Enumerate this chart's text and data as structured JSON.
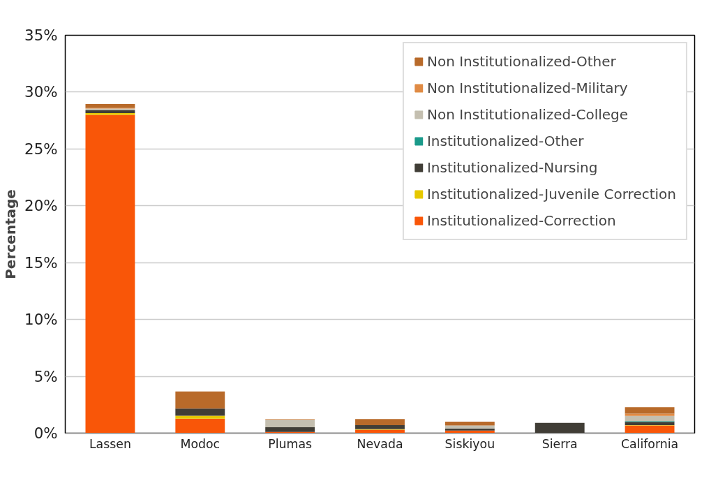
{
  "chart_data": {
    "type": "bar",
    "stacked": true,
    "ylabel": "Percentage",
    "categories": [
      "Lassen",
      "Modoc",
      "Plumas",
      "Nevada",
      "Siskiyou",
      "Sierra",
      "California"
    ],
    "series": [
      {
        "name": "Institutionalized-Correction",
        "color": "#f95608",
        "values": [
          28.0,
          1.27,
          0.1,
          0.3,
          0.23,
          0,
          0.67
        ]
      },
      {
        "name": "Institutionalized-Juvenile Correction",
        "color": "#e6c800",
        "values": [
          0.15,
          0.27,
          0,
          0.06,
          0,
          0,
          0.03
        ]
      },
      {
        "name": "Institutionalized-Nursing",
        "color": "#403d36",
        "values": [
          0.25,
          0.63,
          0.42,
          0.35,
          0.19,
          0.9,
          0.3
        ]
      },
      {
        "name": "Institutionalized-Other",
        "color": "#1a9a8a",
        "values": [
          null,
          0,
          0,
          0,
          0,
          0,
          0.06
        ]
      },
      {
        "name": "Non Institutionalized-College",
        "color": "#c4bfb0",
        "values": [
          0.15,
          0,
          0.67,
          0,
          0.25,
          0,
          0.46
        ]
      },
      {
        "name": "Non Institutionalized-Military",
        "color": "#e08a44",
        "values": [
          0.05,
          null,
          0.06,
          0,
          0,
          0,
          0.2
        ]
      },
      {
        "name": "Non Institutionalized-Other",
        "color": "#b86a2a",
        "values": [
          0.35,
          1.5,
          0,
          0.54,
          0.35,
          0,
          0.56
        ]
      }
    ],
    "ylim": [
      0,
      35
    ],
    "yticks": [
      {
        "value": 0,
        "label": "0%"
      },
      {
        "value": 5,
        "label": "5%"
      },
      {
        "value": 10,
        "label": "10%"
      },
      {
        "value": 15,
        "label": "15%"
      },
      {
        "value": 20,
        "label": "20%"
      },
      {
        "value": 25,
        "label": "25%"
      },
      {
        "value": 30,
        "label": "30%"
      },
      {
        "value": 35,
        "label": "35%"
      }
    ],
    "grid": "y",
    "legend": "top right"
  }
}
